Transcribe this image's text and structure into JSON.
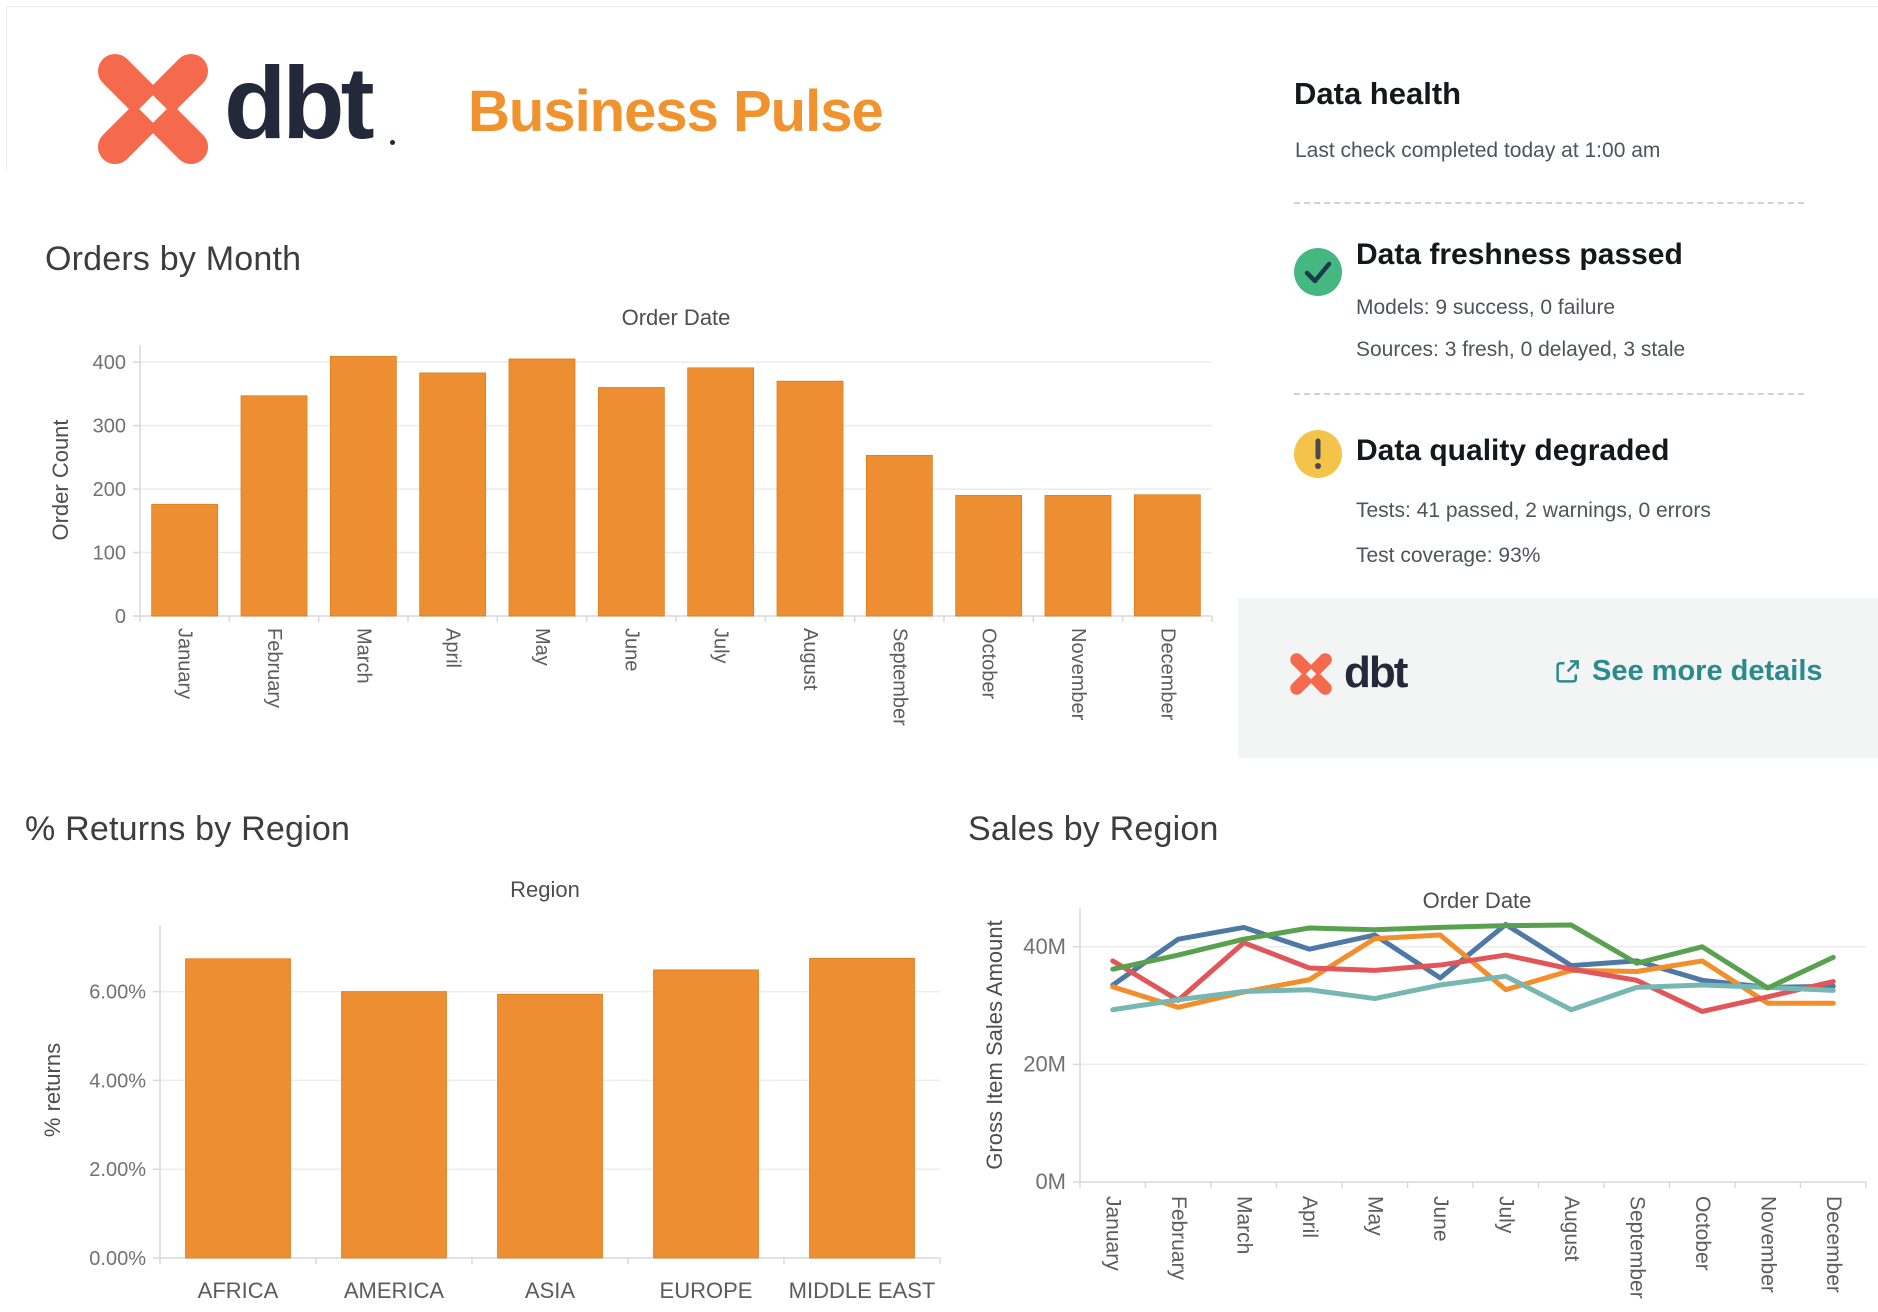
{
  "colors": {
    "brand_coral": "#F5694D",
    "brand_navy": "#23293A",
    "title_orange": "#F0932F",
    "link_teal": "#2B8A8E",
    "success_green": "#45B780",
    "warning_yellow": "#F3C34A",
    "bar_orange": "#ED8E33",
    "panel_band_gray": "#F3F4F4"
  },
  "header": {
    "logo_text": "dbt",
    "title": "Business Pulse"
  },
  "data_health": {
    "title": "Data health",
    "last_check": "Last check completed today at 1:00 am",
    "freshness": {
      "title": "Data freshness passed",
      "models": "Models: 9 success, 0 failure",
      "sources": "Sources: 3 fresh, 0 delayed, 3 stale"
    },
    "quality": {
      "title": "Data quality degraded",
      "tests": "Tests: 41 passed, 2 warnings, 0 errors",
      "coverage": "Test coverage: 93%"
    },
    "footer": {
      "logo_text": "dbt",
      "link_label": "See more details"
    }
  },
  "chart_data": [
    {
      "id": "orders-by-month",
      "type": "bar",
      "title": "Orders by Month",
      "x_axis_title": "Order Date",
      "y_axis_title": "Order Count",
      "categories": [
        "January",
        "February",
        "March",
        "April",
        "May",
        "June",
        "July",
        "August",
        "September",
        "October",
        "November",
        "December"
      ],
      "values": [
        176,
        347,
        409,
        383,
        405,
        360,
        391,
        370,
        253,
        190,
        190,
        191
      ],
      "y_ticks": {
        "values": [
          0,
          100,
          200,
          300,
          400
        ],
        "labels": [
          "0",
          "100",
          "200",
          "300",
          "400"
        ]
      },
      "y_max": 427,
      "bar_color": "#ED8E33",
      "grid": true,
      "legend": "none",
      "rotated_x_labels": true
    },
    {
      "id": "returns-by-region",
      "type": "bar",
      "title": "% Returns by Region",
      "x_axis_title": "Region",
      "y_axis_title": "% returns",
      "categories": [
        "AFRICA",
        "AMERICA",
        "ASIA",
        "EUROPE",
        "MIDDLE EAST"
      ],
      "values": [
        6.74,
        6.0,
        5.94,
        6.49,
        6.75
      ],
      "y_ticks": {
        "values": [
          0,
          2,
          4,
          6
        ],
        "labels": [
          "0.00%",
          "2.00%",
          "4.00%",
          "6.00%"
        ]
      },
      "y_max": 7.5,
      "bar_color": "#ED8E33",
      "grid": true,
      "legend": "none",
      "rotated_x_labels": false
    },
    {
      "id": "sales-by-region",
      "type": "line",
      "title": "Sales by Region",
      "x_axis_title": "Order Date",
      "y_axis_title": "Gross Item Sales Amount",
      "categories": [
        "January",
        "February",
        "March",
        "April",
        "May",
        "June",
        "July",
        "August",
        "September",
        "October",
        "November",
        "December"
      ],
      "y_ticks": {
        "values": [
          0,
          20,
          40
        ],
        "labels": [
          "0M",
          "20M",
          "40M"
        ]
      },
      "y_max": 46.6,
      "unit": "M (millions, gross item sales amount)",
      "grid": true,
      "legend": "none",
      "rotated_x_labels": true,
      "series": [
        {
          "name": "series-blue",
          "color": "#4E79A7",
          "values": [
            33.5,
            41.3,
            43.3,
            39.6,
            42.0,
            34.7,
            43.8,
            36.8,
            37.6,
            34.3,
            33.1,
            33.3
          ]
        },
        {
          "name": "series-orange",
          "color": "#F28E2B",
          "values": [
            33.2,
            29.7,
            32.3,
            34.4,
            41.4,
            42.0,
            32.7,
            36.0,
            35.8,
            37.6,
            30.4,
            30.4
          ]
        },
        {
          "name": "series-red",
          "color": "#E15759",
          "values": [
            37.6,
            30.9,
            40.7,
            36.4,
            36.0,
            36.9,
            38.6,
            36.2,
            34.3,
            29.0,
            31.5,
            34.1
          ]
        },
        {
          "name": "series-teal",
          "color": "#76B7B2",
          "values": [
            29.3,
            31.0,
            32.4,
            32.7,
            31.2,
            33.5,
            35.0,
            29.3,
            33.1,
            33.5,
            33.1,
            32.6
          ]
        },
        {
          "name": "series-green",
          "color": "#59A14F",
          "values": [
            36.2,
            38.6,
            41.3,
            43.2,
            42.9,
            43.3,
            43.6,
            43.7,
            37.2,
            40.0,
            33.0,
            38.2
          ]
        }
      ]
    }
  ]
}
